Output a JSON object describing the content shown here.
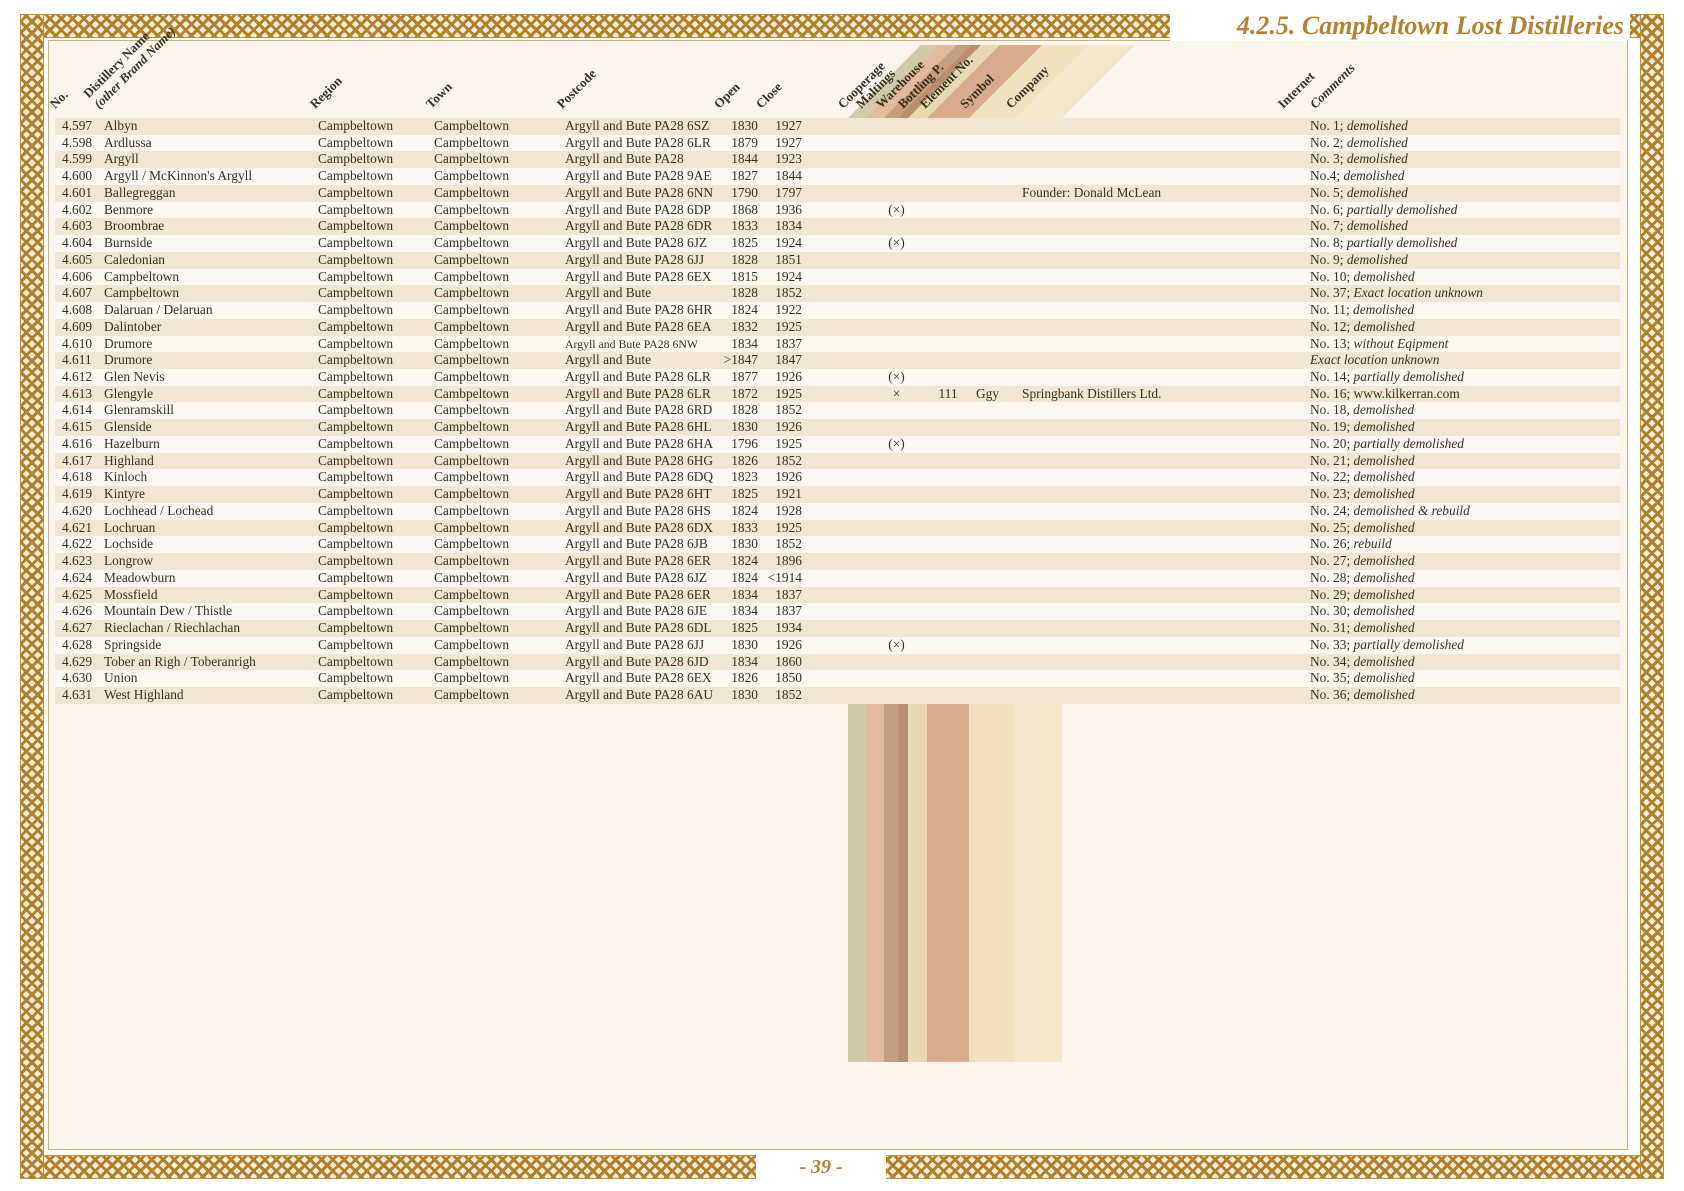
{
  "page": {
    "section_title": "4.2.5. Campbeltown Lost Distilleries",
    "page_number": "- 39 -",
    "colors": {
      "accent": "#b5812f",
      "paper": "#fbf6ec",
      "stripe": "#f1e6d1",
      "stripe-alt": "#fbf8f1",
      "frame": "#c9b184",
      "ink": "#38301f"
    }
  },
  "table": {
    "headers": {
      "no": "No.",
      "name": "Distillery Name",
      "name_sub": "(other Brand Name)",
      "region": "Region",
      "town": "Town",
      "postcode": "Postcode",
      "open": "Open",
      "close": "Close",
      "cooperage": "Cooperage",
      "maltings": "Maltings",
      "warehouse": "Warehouse",
      "bottling": "Bottling P.",
      "element": "Element No.",
      "symbol": "Symbol",
      "company": "Company",
      "internet": "Internet",
      "comments": "Comments"
    },
    "bands": [
      {
        "name": "cooperage",
        "color": "#d4d2b8"
      },
      {
        "name": "maltings",
        "color": "#e6c1aa"
      },
      {
        "name": "warehouse",
        "color": "#c9a387",
        "color2": "#bb9379"
      },
      {
        "name": "bottling",
        "color": "#ece1bf"
      },
      {
        "name": "element",
        "color": "#dcb298"
      },
      {
        "name": "symbol",
        "color": "#f6ead1"
      },
      {
        "name": "company",
        "color": "#f9f0dd"
      }
    ],
    "rows": [
      {
        "no": "4.597",
        "name": "Albyn",
        "region": "Campbeltown",
        "town": "Campbeltown",
        "postcode": "Argyll and Bute PA28 6SZ",
        "open": "1830",
        "close": "1927",
        "note": "No. 1;",
        "note_i": "demolished"
      },
      {
        "no": "4.598",
        "name": "Ardlussa",
        "region": "Campbeltown",
        "town": "Campbeltown",
        "postcode": "Argyll and Bute PA28 6LR",
        "open": "1879",
        "close": "1927",
        "note": "No. 2;",
        "note_i": "demolished"
      },
      {
        "no": "4.599",
        "name": "Argyll",
        "region": "Campbeltown",
        "town": "Campbeltown",
        "postcode": "Argyll and Bute PA28",
        "open": "1844",
        "close": "1923",
        "note": "No. 3;",
        "note_i": "demolished"
      },
      {
        "no": "4.600",
        "name": "Argyll / McKinnon's Argyll",
        "region": "Campbeltown",
        "town": "Campbeltown",
        "postcode": "Argyll and Bute PA28 9AE",
        "open": "1827",
        "close": "1844",
        "note": "No.4;",
        "note_i": "demolished"
      },
      {
        "no": "4.601",
        "name": "Ballegreggan",
        "region": "Campbeltown",
        "town": "Campbeltown",
        "postcode": "Argyll and Bute PA28 6NN",
        "open": "1790",
        "close": "1797",
        "company": "Founder: Donald McLean",
        "note": "No. 5;",
        "note_i": "demolished"
      },
      {
        "no": "4.602",
        "name": "Benmore",
        "region": "Campbeltown",
        "town": "Campbeltown",
        "postcode": "Argyll and Bute PA28 6DP",
        "open": "1868",
        "close": "1936",
        "warehouse": "(×)",
        "note": "No. 6;",
        "note_i": "partially demolished"
      },
      {
        "no": "4.603",
        "name": "Broombrae",
        "region": "Campbeltown",
        "town": "Campbeltown",
        "postcode": "Argyll and Bute PA28 6DR",
        "open": "1833",
        "close": "1834",
        "note": "No. 7;",
        "note_i": "demolished"
      },
      {
        "no": "4.604",
        "name": "Burnside",
        "region": "Campbeltown",
        "town": "Campbeltown",
        "postcode": "Argyll and Bute PA28 6JZ",
        "open": "1825",
        "close": "1924",
        "warehouse": "(×)",
        "note": "No. 8;",
        "note_i": "partially demolished"
      },
      {
        "no": "4.605",
        "name": "Caledonian",
        "region": "Campbeltown",
        "town": "Campbeltown",
        "postcode": "Argyll and Bute PA28 6JJ",
        "open": "1828",
        "close": "1851",
        "note": "No. 9;",
        "note_i": "demolished"
      },
      {
        "no": "4.606",
        "name": "Campbeltown",
        "region": "Campbeltown",
        "town": "Campbeltown",
        "postcode": "Argyll and Bute PA28 6EX",
        "open": "1815",
        "close": "1924",
        "note": "No. 10;",
        "note_i": "demolished"
      },
      {
        "no": "4.607",
        "name": "Campbeltown",
        "region": "Campbeltown",
        "town": "Campbeltown",
        "postcode": "Argyll and Bute",
        "open": "1828",
        "close": "1852",
        "note": "No. 37;",
        "note_i": "Exact location unknown"
      },
      {
        "no": "4.608",
        "name": "Dalaruan / Delaruan",
        "region": "Campbeltown",
        "town": "Campbeltown",
        "postcode": "Argyll and Bute PA28 6HR",
        "open": "1824",
        "close": "1922",
        "note": "No. 11;",
        "note_i": "demolished"
      },
      {
        "no": "4.609",
        "name": "Dalintober",
        "region": "Campbeltown",
        "town": "Campbeltown",
        "postcode": "Argyll and Bute PA28 6EA",
        "open": "1832",
        "close": "1925",
        "note": "No. 12;",
        "note_i": "demolished"
      },
      {
        "no": "4.610",
        "name": "Drumore",
        "region": "Campbeltown",
        "town": "Campbeltown",
        "postcode": "Argyll and Bute PA28 6NW",
        "postcode_small": true,
        "open": "1834",
        "close": "1837",
        "note": "No. 13;",
        "note_i": "without Eqipment"
      },
      {
        "no": "4.611",
        "name": "Drumore",
        "region": "Campbeltown",
        "town": "Campbeltown",
        "postcode": "Argyll and Bute",
        "open": ">1847",
        "close": "1847",
        "note": "",
        "note_i": "Exact location unknown"
      },
      {
        "no": "4.612",
        "name": "Glen Nevis",
        "region": "Campbeltown",
        "town": "Campbeltown",
        "postcode": "Argyll and Bute PA28 6LR",
        "open": "1877",
        "close": "1926",
        "warehouse": "(×)",
        "note": "No. 14;",
        "note_i": "partially demolished"
      },
      {
        "no": "4.613",
        "name": "Glengyle",
        "region": "Campbeltown",
        "town": "Cambpeltown",
        "postcode": "Argyll and Bute PA28 6LR",
        "open": "1872",
        "close": "1925",
        "warehouse": "×",
        "element": "111",
        "symbol": "Ggy",
        "company": "Springbank Distillers Ltd.",
        "note": "No. 16; www.kilkerran.com",
        "note_i": ""
      },
      {
        "no": "4.614",
        "name": "Glenramskill",
        "region": "Campbeltown",
        "town": "Campbeltown",
        "postcode": "Argyll and Bute PA28 6RD",
        "open": "1828",
        "close": "1852",
        "note": "No. 18,",
        "note_i": "demolished"
      },
      {
        "no": "4.615",
        "name": "Glenside",
        "region": "Campbeltown",
        "town": "Campbeltown",
        "postcode": "Argyll and Bute PA28 6HL",
        "open": "1830",
        "close": "1926",
        "note": "No. 19;",
        "note_i": "demolished"
      },
      {
        "no": "4.616",
        "name": "Hazelburn",
        "region": "Campbeltown",
        "town": "Campbeltown",
        "postcode": "Argyll and Bute PA28 6HA",
        "open": "1796",
        "close": "1925",
        "warehouse": "(×)",
        "note": "No. 20;",
        "note_i": "partially demolished"
      },
      {
        "no": "4.617",
        "name": "Highland",
        "region": "Campbeltown",
        "town": "Campbeltown",
        "postcode": "Argyll and Bute PA28 6HG",
        "open": "1826",
        "close": "1852",
        "note": "No. 21;",
        "note_i": "demolished"
      },
      {
        "no": "4.618",
        "name": "Kinloch",
        "region": "Campbeltown",
        "town": "Campbeltown",
        "postcode": "Argyll and Bute PA28 6DQ",
        "open": "1823",
        "close": "1926",
        "note": "No. 22;",
        "note_i": "demolished"
      },
      {
        "no": "4.619",
        "name": "Kintyre",
        "region": "Campbeltown",
        "town": "Campbeltown",
        "postcode": "Argyll and Bute PA28 6HT",
        "open": "1825",
        "close": "1921",
        "note": "No. 23;",
        "note_i": "demolished"
      },
      {
        "no": "4.620",
        "name": "Lochhead / Lochead",
        "region": "Campbeltown",
        "town": "Campbeltown",
        "postcode": "Argyll and Bute PA28 6HS",
        "open": "1824",
        "close": "1928",
        "note": "No. 24;",
        "note_i": "demolished & rebuild"
      },
      {
        "no": "4.621",
        "name": "Lochruan",
        "region": "Campbeltown",
        "town": "Campbeltown",
        "postcode": "Argyll and Bute PA28 6DX",
        "open": "1833",
        "close": "1925",
        "note": "No. 25;",
        "note_i": "demolished"
      },
      {
        "no": "4.622",
        "name": "Lochside",
        "region": "Campbeltown",
        "town": "Campbeltown",
        "postcode": "Argyll and Bute PA28 6JB",
        "open": "1830",
        "close": "1852",
        "note": "No. 26;",
        "note_i": "rebuild"
      },
      {
        "no": "4.623",
        "name": "Longrow",
        "region": "Campbeltown",
        "town": "Campbeltown",
        "postcode": "Argyll and Bute PA28 6ER",
        "open": "1824",
        "close": "1896",
        "note": "No. 27;",
        "note_i": "demolished"
      },
      {
        "no": "4.624",
        "name": "Meadowburn",
        "region": "Campbeltown",
        "town": "Campbeltown",
        "postcode": "Argyll and Bute PA28 6JZ",
        "open": "1824",
        "close": "<1914",
        "note": "No. 28;",
        "note_i": "demolished"
      },
      {
        "no": "4.625",
        "name": "Mossfield",
        "region": "Campbeltown",
        "town": "Campbeltown",
        "postcode": "Argyll and Bute PA28 6ER",
        "open": "1834",
        "close": "1837",
        "note": "No. 29;",
        "note_i": "demolished"
      },
      {
        "no": "4.626",
        "name": "Mountain Dew / Thistle",
        "region": "Campbeltown",
        "town": "Campbeltown",
        "postcode": "Argyll and Bute PA28 6JE",
        "open": "1834",
        "close": "1837",
        "note": "No. 30;",
        "note_i": "demolished"
      },
      {
        "no": "4.627",
        "name": "Rieclachan / Riechlachan",
        "region": "Campbeltown",
        "town": "Campbeltown",
        "postcode": "Argyll and Bute PA28 6DL",
        "open": "1825",
        "close": "1934",
        "note": "No. 31;",
        "note_i": "demolished"
      },
      {
        "no": "4.628",
        "name": "Springside",
        "region": "Campbeltown",
        "town": "Campbeltown",
        "postcode": "Argyll and Bute PA28 6JJ",
        "open": "1830",
        "close": "1926",
        "warehouse": "(×)",
        "note": "No. 33;",
        "note_i": "partially demolished"
      },
      {
        "no": "4.629",
        "name": "Tober an Righ / Toberanrigh",
        "region": "Campbeltown",
        "town": "Campbeltown",
        "postcode": "Argyll and Bute PA28 6JD",
        "open": "1834",
        "close": "1860",
        "note": "No. 34;",
        "note_i": "demolished"
      },
      {
        "no": "4.630",
        "name": "Union",
        "region": "Campbeltown",
        "town": "Campbeltown",
        "postcode": "Argyll and Bute PA28 6EX",
        "open": "1826",
        "close": "1850",
        "note": "No. 35;",
        "note_i": "demolished"
      },
      {
        "no": "4.631",
        "name": "West Highland",
        "region": "Campbeltown",
        "town": "Campbeltown",
        "postcode": "Argyll and Bute PA28 6AU",
        "open": "1830",
        "close": "1852",
        "note": "No. 36;",
        "note_i": "demolished"
      }
    ]
  }
}
